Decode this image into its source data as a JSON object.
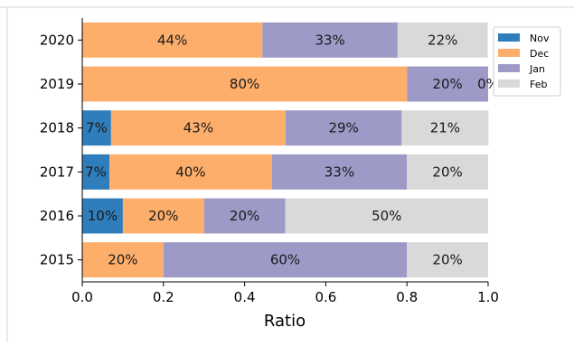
{
  "chart_data": {
    "type": "bar",
    "orientation": "horizontal",
    "stacked": true,
    "categories": [
      "2015",
      "2016",
      "2017",
      "2018",
      "2019",
      "2020"
    ],
    "series": [
      {
        "name": "Nov",
        "color": "#2f7dbb",
        "values": [
          0.0,
          0.1,
          0.067,
          0.071,
          0.0,
          0.0
        ],
        "labels": [
          "",
          "10%",
          "7%",
          "7%",
          "",
          ""
        ]
      },
      {
        "name": "Dec",
        "color": "#fdae6b",
        "values": [
          0.2,
          0.2,
          0.4,
          0.43,
          0.8,
          0.444
        ],
        "labels": [
          "20%",
          "20%",
          "40%",
          "43%",
          "80%",
          "44%"
        ]
      },
      {
        "name": "Jan",
        "color": "#9e9ac8",
        "values": [
          0.6,
          0.2,
          0.333,
          0.286,
          0.2,
          0.333
        ],
        "labels": [
          "60%",
          "20%",
          "33%",
          "29%",
          "20%",
          "33%"
        ]
      },
      {
        "name": "Feb",
        "color": "#d9d9d9",
        "values": [
          0.2,
          0.5,
          0.2,
          0.214,
          0.0,
          0.222
        ],
        "labels": [
          "20%",
          "50%",
          "20%",
          "21%",
          "0%",
          "22%"
        ]
      }
    ],
    "xlim": [
      0,
      1.0
    ],
    "xticks": [
      0.0,
      0.2,
      0.4,
      0.6,
      0.8,
      1.0
    ],
    "xtick_labels": [
      "0.0",
      "0.2",
      "0.4",
      "0.6",
      "0.8",
      "1.0"
    ],
    "xlabel": "Ratio",
    "ylabel": "",
    "title": "",
    "grid": false,
    "legend_position": "top-right"
  }
}
